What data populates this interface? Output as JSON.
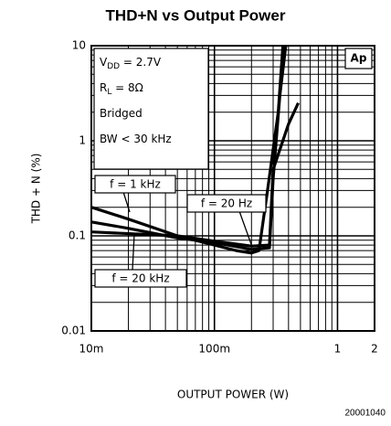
{
  "chart_data": {
    "type": "line",
    "title": "THD+N vs Output Power",
    "xlabel": "OUTPUT POWER (W)",
    "ylabel": "THD + N (%)",
    "footnote": "20001040",
    "xscale": "log",
    "yscale": "log",
    "xlim": [
      0.01,
      2
    ],
    "ylim": [
      0.01,
      10
    ],
    "xticks": [
      {
        "value": 0.01,
        "label": "10m"
      },
      {
        "value": 0.1,
        "label": "100m"
      },
      1,
      2
    ],
    "yticks": [
      0.01,
      0.1,
      1,
      10
    ],
    "x_minor_ticks": [
      0.02,
      0.03,
      0.04,
      0.05,
      0.06,
      0.07,
      0.08,
      0.09,
      0.2,
      0.3,
      0.4,
      0.5,
      0.6,
      0.7,
      0.8,
      0.9
    ],
    "y_minor_ticks": [
      0.02,
      0.03,
      0.04,
      0.05,
      0.06,
      0.07,
      0.08,
      0.09,
      0.2,
      0.3,
      0.4,
      0.5,
      0.6,
      0.7,
      0.8,
      0.9,
      2,
      3,
      4,
      5,
      6,
      7,
      8,
      9
    ],
    "grid": true,
    "conditions": [
      {
        "text": "V",
        "sub": "DD",
        "rest": " = 2.7V"
      },
      {
        "text": "R",
        "sub": "L",
        "rest": " = 8Ω"
      },
      {
        "text": "Bridged"
      },
      {
        "text": "BW < 30 kHz"
      }
    ],
    "badge": "Ap",
    "series": [
      {
        "name": "f = 1 kHz",
        "color": "#000000",
        "x": [
          0.01,
          0.02,
          0.05,
          0.1,
          0.15,
          0.2,
          0.23,
          0.27,
          0.33,
          0.36
        ],
        "y": [
          0.2,
          0.15,
          0.1,
          0.08,
          0.07,
          0.066,
          0.07,
          0.3,
          2,
          10
        ]
      },
      {
        "name": "f = 20 kHz",
        "color": "#000000",
        "x": [
          0.01,
          0.02,
          0.05,
          0.1,
          0.2,
          0.28,
          0.3,
          0.34,
          0.38
        ],
        "y": [
          0.14,
          0.12,
          0.095,
          0.085,
          0.072,
          0.075,
          0.4,
          3,
          10
        ]
      },
      {
        "name": "f = 20 Hz",
        "color": "#000000",
        "x": [
          0.01,
          0.05,
          0.1,
          0.2,
          0.28,
          0.3,
          0.4,
          0.48
        ],
        "y": [
          0.11,
          0.1,
          0.088,
          0.078,
          0.08,
          0.5,
          1.5,
          2.5
        ]
      }
    ]
  }
}
